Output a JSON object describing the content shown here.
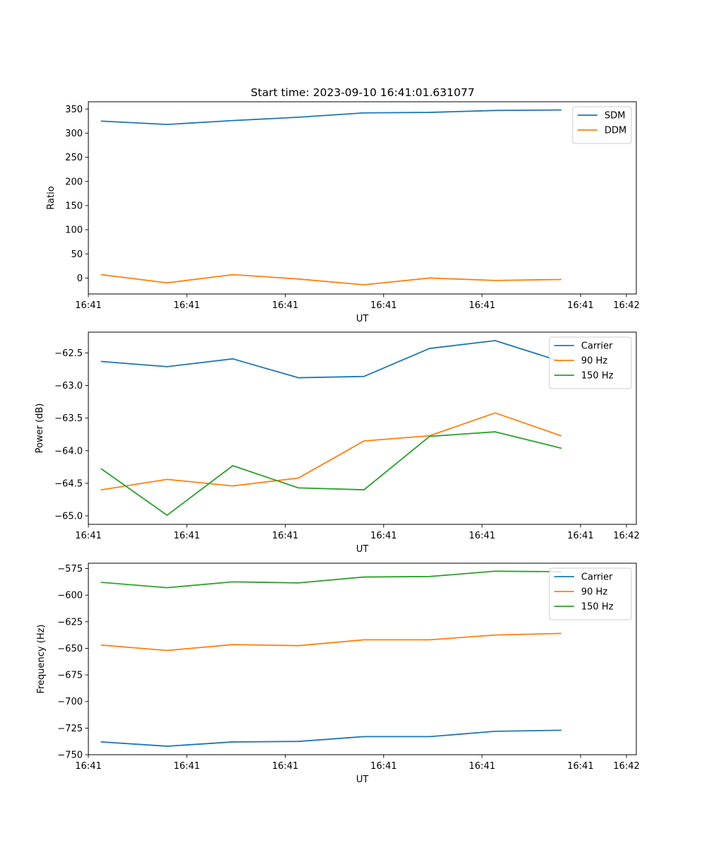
{
  "figure": {
    "title": "Start time: 2023-09-10 16:41:01.631077"
  },
  "colors": {
    "blue": "#1f77b4",
    "orange": "#ff7f0e",
    "green": "#2ca02c"
  },
  "chart_data": [
    {
      "id": "ratio",
      "type": "line",
      "title": "Start time: 2023-09-10 16:41:01.631077",
      "xlabel": "UT",
      "ylabel": "Ratio",
      "x": [
        1,
        2,
        3,
        4,
        5,
        6,
        7,
        8
      ],
      "xlim": [
        0.8,
        9.15
      ],
      "ylim": [
        -33,
        365
      ],
      "xticks": [
        {
          "v": 0.8,
          "label": "16:41"
        },
        {
          "v": 2.3,
          "label": "16:41"
        },
        {
          "v": 3.8,
          "label": "16:41"
        },
        {
          "v": 5.3,
          "label": "16:41"
        },
        {
          "v": 6.8,
          "label": "16:41"
        },
        {
          "v": 8.3,
          "label": "16:41"
        },
        {
          "v": 9.0,
          "label": "16:42"
        }
      ],
      "yticks": [
        0,
        50,
        100,
        150,
        200,
        250,
        300,
        350
      ],
      "legend": "top-right",
      "series": [
        {
          "name": "SDM",
          "color": "#1f77b4",
          "values": [
            325,
            318,
            326,
            333,
            342,
            343,
            347,
            348
          ]
        },
        {
          "name": "DDM",
          "color": "#ff7f0e",
          "values": [
            7,
            -10,
            7,
            -2,
            -14,
            0,
            -5,
            -3
          ]
        }
      ]
    },
    {
      "id": "power",
      "type": "line",
      "xlabel": "UT",
      "ylabel": "Power (dB)",
      "x": [
        1,
        2,
        3,
        4,
        5,
        6,
        7,
        8
      ],
      "xlim": [
        0.8,
        9.15
      ],
      "ylim": [
        -65.13,
        -62.18
      ],
      "xticks": [
        {
          "v": 0.8,
          "label": "16:41"
        },
        {
          "v": 2.3,
          "label": "16:41"
        },
        {
          "v": 3.8,
          "label": "16:41"
        },
        {
          "v": 5.3,
          "label": "16:41"
        },
        {
          "v": 6.8,
          "label": "16:41"
        },
        {
          "v": 8.3,
          "label": "16:41"
        },
        {
          "v": 9.0,
          "label": "16:42"
        }
      ],
      "yticks": [
        -65.0,
        -64.5,
        -64.0,
        -63.5,
        -63.0,
        -62.5
      ],
      "ytick_decimals": 1,
      "legend": "top-right",
      "series": [
        {
          "name": "Carrier",
          "color": "#1f77b4",
          "values": [
            -62.63,
            -62.71,
            -62.59,
            -62.88,
            -62.86,
            -62.43,
            -62.31,
            -62.63
          ]
        },
        {
          "name": "90 Hz",
          "color": "#ff7f0e",
          "values": [
            -64.6,
            -64.44,
            -64.54,
            -64.42,
            -63.85,
            -63.77,
            -63.42,
            -63.77
          ]
        },
        {
          "name": "150 Hz",
          "color": "#2ca02c",
          "values": [
            -64.28,
            -64.99,
            -64.23,
            -64.57,
            -64.6,
            -63.78,
            -63.71,
            -63.96
          ]
        }
      ]
    },
    {
      "id": "frequency",
      "type": "line",
      "xlabel": "UT",
      "ylabel": "Frequency (Hz)",
      "x": [
        1,
        2,
        3,
        4,
        5,
        6,
        7,
        8
      ],
      "xlim": [
        0.8,
        9.15
      ],
      "ylim": [
        -750,
        -570
      ],
      "xticks": [
        {
          "v": 0.8,
          "label": "16:41"
        },
        {
          "v": 2.3,
          "label": "16:41"
        },
        {
          "v": 3.8,
          "label": "16:41"
        },
        {
          "v": 5.3,
          "label": "16:41"
        },
        {
          "v": 6.8,
          "label": "16:41"
        },
        {
          "v": 8.3,
          "label": "16:41"
        },
        {
          "v": 9.0,
          "label": "16:42"
        }
      ],
      "yticks": [
        -750,
        -725,
        -700,
        -675,
        -650,
        -625,
        -600,
        -575
      ],
      "legend": "top-right",
      "series": [
        {
          "name": "Carrier",
          "color": "#1f77b4",
          "values": [
            -738,
            -742,
            -738,
            -737.5,
            -733,
            -733,
            -728,
            -727
          ]
        },
        {
          "name": "90 Hz",
          "color": "#ff7f0e",
          "values": [
            -647,
            -652,
            -646.5,
            -647.5,
            -642,
            -642,
            -637.5,
            -636
          ]
        },
        {
          "name": "150 Hz",
          "color": "#2ca02c",
          "values": [
            -588,
            -593,
            -587.5,
            -588.5,
            -583,
            -582.5,
            -577.5,
            -578
          ]
        }
      ]
    }
  ]
}
